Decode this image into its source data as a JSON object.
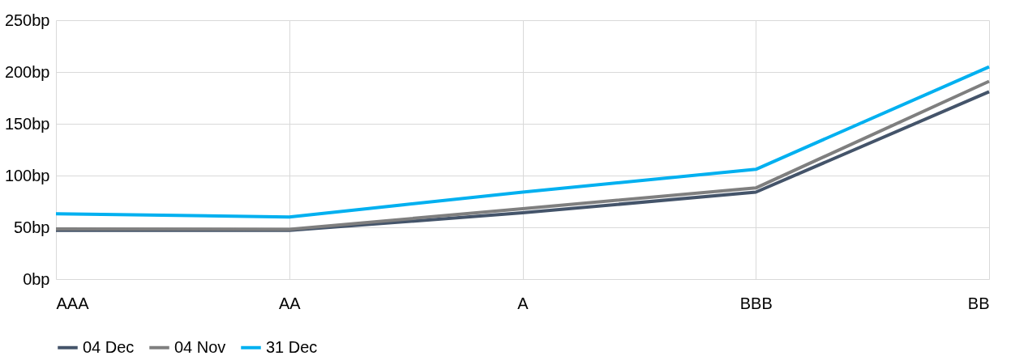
{
  "chart_data": {
    "type": "line",
    "categories": [
      "AAA",
      "AA",
      "A",
      "BBB",
      "BB"
    ],
    "series": [
      {
        "name": "04 Dec",
        "color": "#44546a",
        "values": [
          47,
          47,
          64,
          84,
          181
        ]
      },
      {
        "name": "04 Nov",
        "color": "#7f7f7f",
        "values": [
          48.5,
          48,
          68,
          88,
          191
        ]
      },
      {
        "name": "31 Dec",
        "color": "#00b0f0",
        "values": [
          63,
          60,
          84,
          106,
          205
        ]
      }
    ],
    "ylim": [
      0,
      250
    ],
    "yticks": [
      {
        "value": 0,
        "label": "0bp"
      },
      {
        "value": 50,
        "label": "50bp"
      },
      {
        "value": 100,
        "label": "100bp"
      },
      {
        "value": 150,
        "label": "150bp"
      },
      {
        "value": 200,
        "label": "200bp"
      },
      {
        "value": 250,
        "label": "250bp"
      }
    ],
    "grid": true,
    "legend": "bottom",
    "marker": "none",
    "line_style": "solid"
  }
}
